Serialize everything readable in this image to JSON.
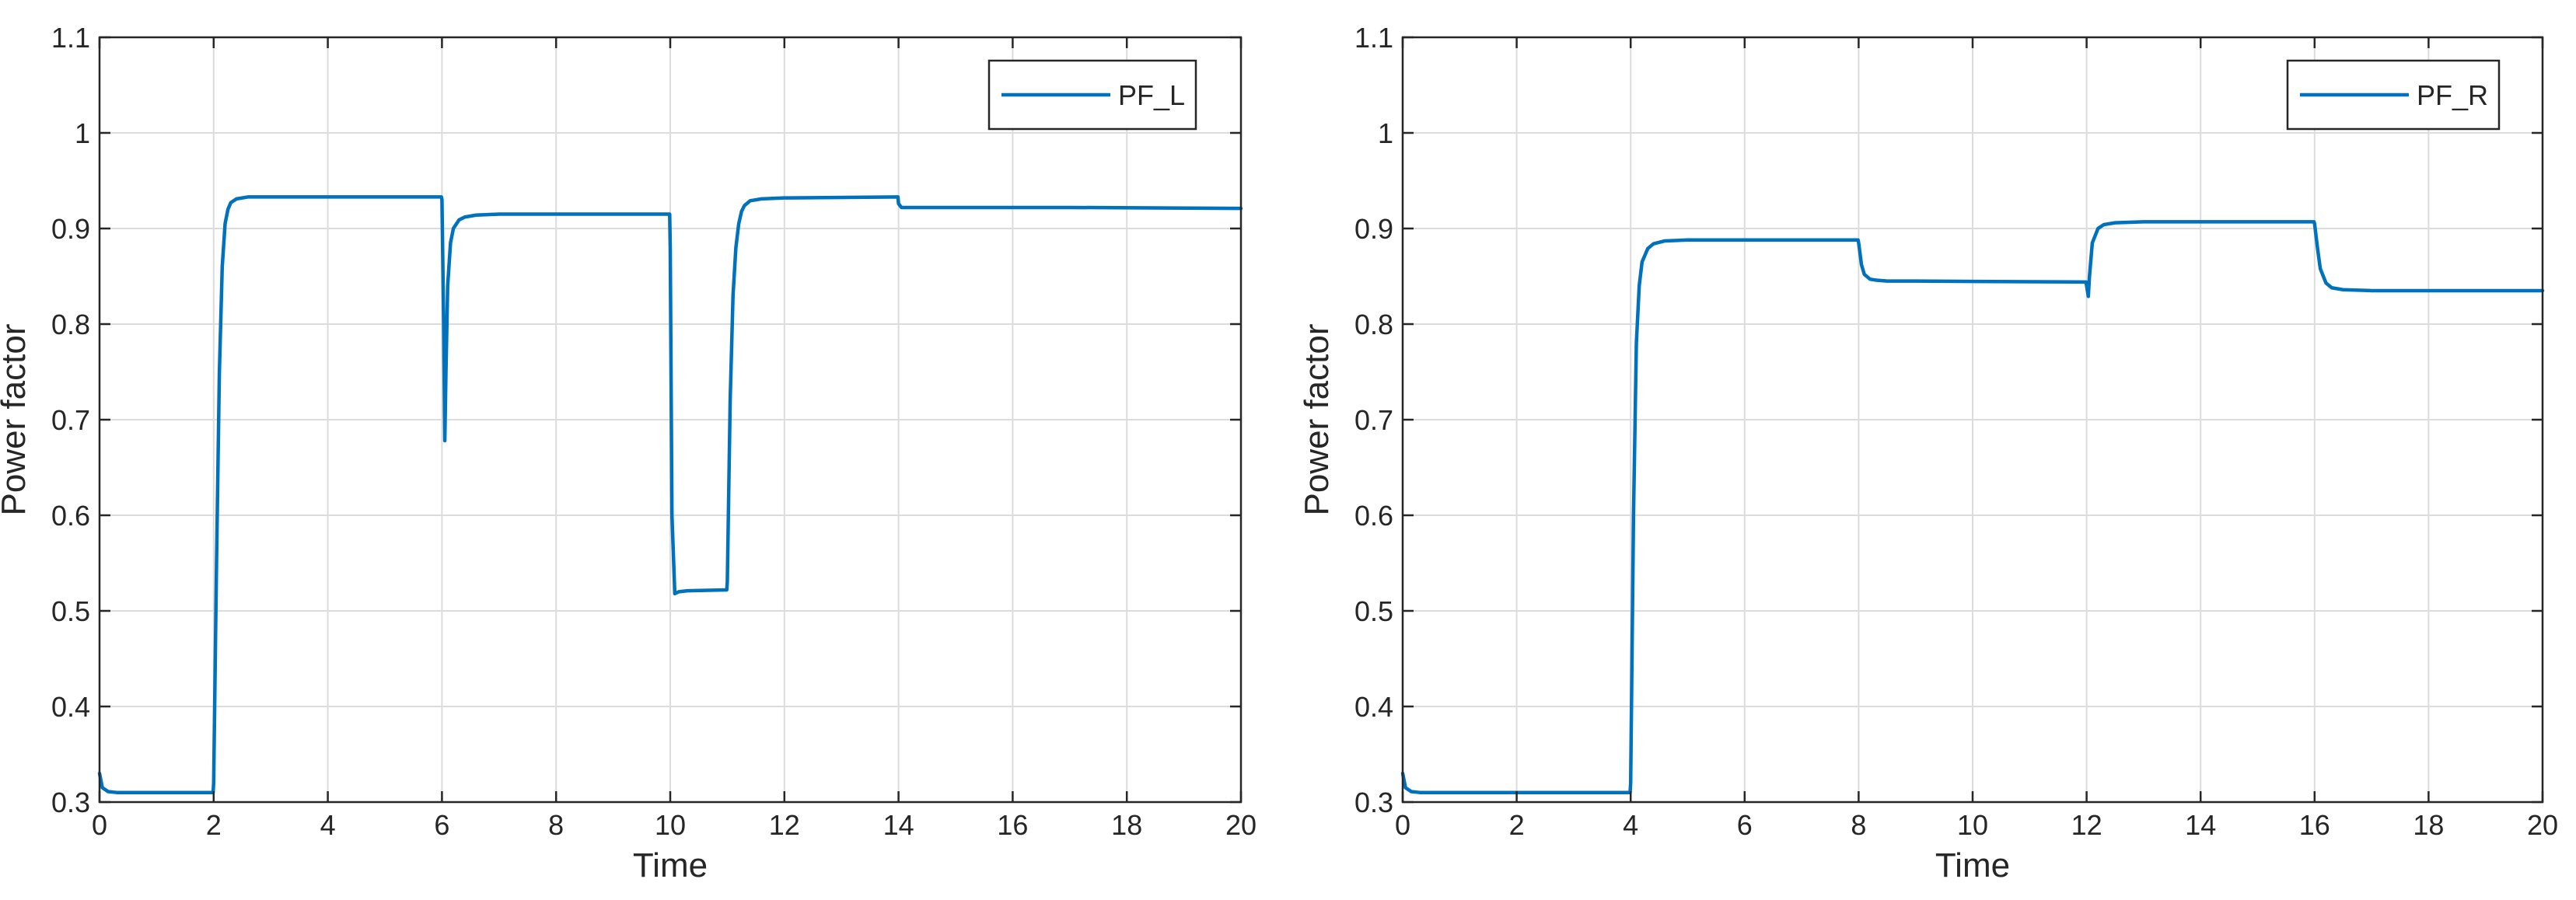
{
  "chart_data": [
    {
      "type": "line",
      "title": "",
      "xlabel": "Time",
      "ylabel": "Power factor",
      "xlim": [
        0,
        20
      ],
      "ylim": [
        0.3,
        1.1
      ],
      "xticks": [
        0,
        2,
        4,
        6,
        8,
        10,
        12,
        14,
        16,
        18,
        20
      ],
      "yticks": [
        0.3,
        0.4,
        0.5,
        0.6,
        0.7,
        0.8,
        0.9,
        1,
        1.1
      ],
      "xtick_labels": [
        "0",
        "2",
        "4",
        "6",
        "8",
        "10",
        "12",
        "14",
        "16",
        "18",
        "20"
      ],
      "ytick_labels": [
        "0.3",
        "0.4",
        "0.5",
        "0.6",
        "0.7",
        "0.8",
        "0.9",
        "1",
        "1.1"
      ],
      "grid": true,
      "legend_position": "top-right",
      "series": [
        {
          "name": "PF_L",
          "color": "#0072BD",
          "x": [
            0,
            0.05,
            0.15,
            0.3,
            1.99,
            2.0,
            2.05,
            2.1,
            2.15,
            2.2,
            2.25,
            2.3,
            2.4,
            2.6,
            3,
            5.99,
            6.0,
            6.03,
            6.05,
            6.07,
            6.1,
            6.15,
            6.2,
            6.3,
            6.4,
            6.6,
            7,
            9.99,
            10.0,
            10.03,
            10.08,
            10.15,
            10.3,
            10.99,
            11.0,
            11.05,
            11.1,
            11.15,
            11.2,
            11.25,
            11.3,
            11.4,
            11.6,
            12,
            13.99,
            14.0,
            14.05,
            15,
            17,
            20
          ],
          "y": [
            0.33,
            0.315,
            0.311,
            0.31,
            0.31,
            0.32,
            0.55,
            0.75,
            0.86,
            0.905,
            0.92,
            0.927,
            0.931,
            0.933,
            0.933,
            0.933,
            0.93,
            0.8,
            0.678,
            0.75,
            0.84,
            0.885,
            0.9,
            0.909,
            0.912,
            0.914,
            0.915,
            0.915,
            0.88,
            0.6,
            0.518,
            0.52,
            0.521,
            0.522,
            0.53,
            0.72,
            0.83,
            0.88,
            0.905,
            0.918,
            0.924,
            0.929,
            0.931,
            0.932,
            0.933,
            0.926,
            0.922,
            0.922,
            0.922,
            0.921
          ]
        }
      ]
    },
    {
      "type": "line",
      "title": "",
      "xlabel": "Time",
      "ylabel": "Power factor",
      "xlim": [
        0,
        20
      ],
      "ylim": [
        0.3,
        1.1
      ],
      "xticks": [
        0,
        2,
        4,
        6,
        8,
        10,
        12,
        14,
        16,
        18,
        20
      ],
      "yticks": [
        0.3,
        0.4,
        0.5,
        0.6,
        0.7,
        0.8,
        0.9,
        1,
        1.1
      ],
      "xtick_labels": [
        "0",
        "2",
        "4",
        "6",
        "8",
        "10",
        "12",
        "14",
        "16",
        "18",
        "20"
      ],
      "ytick_labels": [
        "0.3",
        "0.4",
        "0.5",
        "0.6",
        "0.7",
        "0.8",
        "0.9",
        "1",
        "1.1"
      ],
      "grid": true,
      "legend_position": "top-right",
      "series": [
        {
          "name": "PF_R",
          "color": "#0072BD",
          "x": [
            0,
            0.05,
            0.15,
            0.3,
            3.99,
            4.0,
            4.05,
            4.1,
            4.15,
            4.2,
            4.3,
            4.4,
            4.6,
            5,
            7.99,
            8.0,
            8.05,
            8.1,
            8.2,
            8.3,
            8.5,
            9,
            11.99,
            12.0,
            12.03,
            12.05,
            12.1,
            12.2,
            12.3,
            12.5,
            13,
            15.99,
            16.0,
            16.05,
            16.1,
            16.2,
            16.3,
            16.5,
            17,
            20
          ],
          "y": [
            0.33,
            0.315,
            0.311,
            0.31,
            0.31,
            0.32,
            0.6,
            0.78,
            0.84,
            0.865,
            0.879,
            0.884,
            0.887,
            0.888,
            0.888,
            0.885,
            0.862,
            0.852,
            0.847,
            0.846,
            0.845,
            0.845,
            0.844,
            0.84,
            0.829,
            0.85,
            0.885,
            0.9,
            0.904,
            0.906,
            0.907,
            0.907,
            0.905,
            0.88,
            0.858,
            0.843,
            0.838,
            0.836,
            0.835,
            0.835
          ]
        }
      ]
    }
  ]
}
